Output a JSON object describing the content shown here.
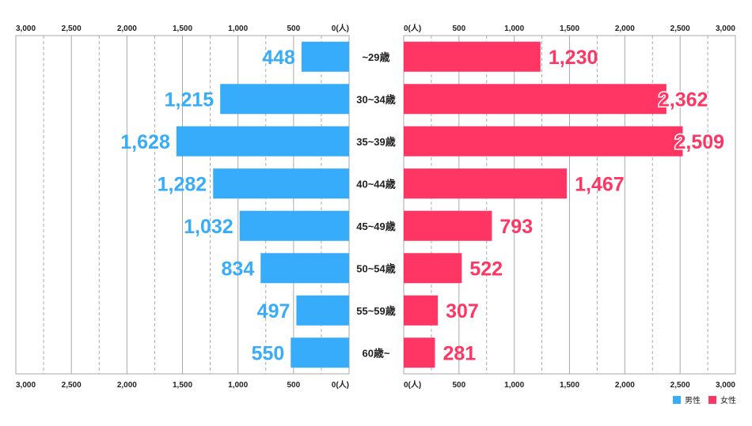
{
  "chart_data": {
    "type": "bar",
    "orientation": "horizontal-population-pyramid",
    "categories": [
      "~29歳",
      "30~34歳",
      "35~39歳",
      "40~44歳",
      "45~49歳",
      "50~54歳",
      "55~59歳",
      "60歳~"
    ],
    "series": [
      {
        "name": "男性",
        "color": "#36acfa",
        "side": "left",
        "values": [
          448,
          1215,
          1628,
          1282,
          1032,
          834,
          497,
          550
        ],
        "labels": [
          "448",
          "1,215",
          "1,628",
          "1,282",
          "1,032",
          "834",
          "497",
          "550"
        ]
      },
      {
        "name": "女性",
        "color": "#ff3563",
        "side": "right",
        "values": [
          1230,
          2362,
          2509,
          1467,
          793,
          522,
          307,
          281
        ],
        "labels": [
          "1,230",
          "2,362",
          "2,509",
          "1,467",
          "793",
          "522",
          "307",
          "281"
        ]
      }
    ],
    "xlim": [
      0,
      3000
    ],
    "ticks": [
      {
        "value": 0,
        "label": "0(人)"
      },
      {
        "value": 500,
        "label": "500"
      },
      {
        "value": 1000,
        "label": "1,000"
      },
      {
        "value": 1500,
        "label": "1,500"
      },
      {
        "value": 2000,
        "label": "2,000"
      },
      {
        "value": 2500,
        "label": "2,500"
      },
      {
        "value": 3000,
        "label": "3,000"
      }
    ],
    "grid": true,
    "legend": "bottom-right"
  }
}
